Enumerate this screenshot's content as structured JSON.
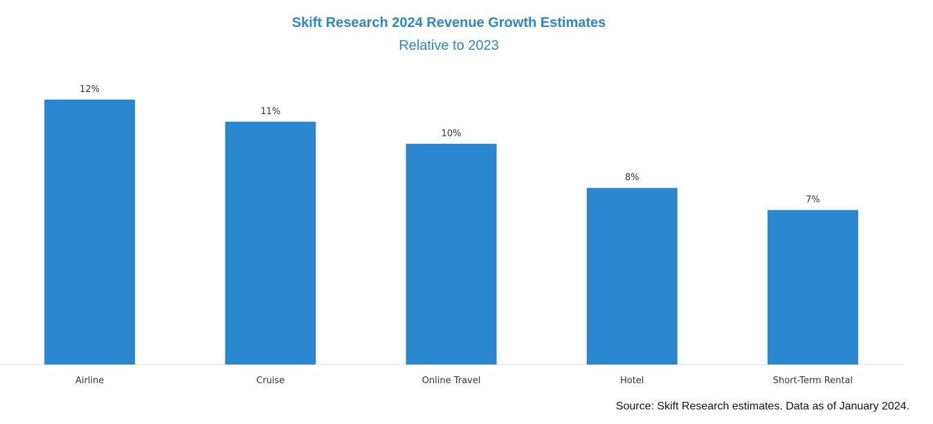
{
  "chart_data": {
    "type": "bar",
    "title": "Skift Research 2024 Revenue Growth Estimates",
    "subtitle": "Relative to 2023",
    "categories": [
      "Airline",
      "Cruise",
      "Online Travel",
      "Hotel",
      "Short-Term Rental"
    ],
    "values": [
      12,
      11,
      10,
      8,
      7
    ],
    "value_unit": "%",
    "data_labels": [
      "12%",
      "11%",
      "10%",
      "8%",
      "7%"
    ],
    "ylim": [
      0,
      12
    ],
    "grid": false,
    "legend": "none",
    "bar_color": "#2a87cf",
    "title_color": "#2e86cf"
  },
  "source_note": "Source: Skift Research estimates. Data as of January 2024."
}
